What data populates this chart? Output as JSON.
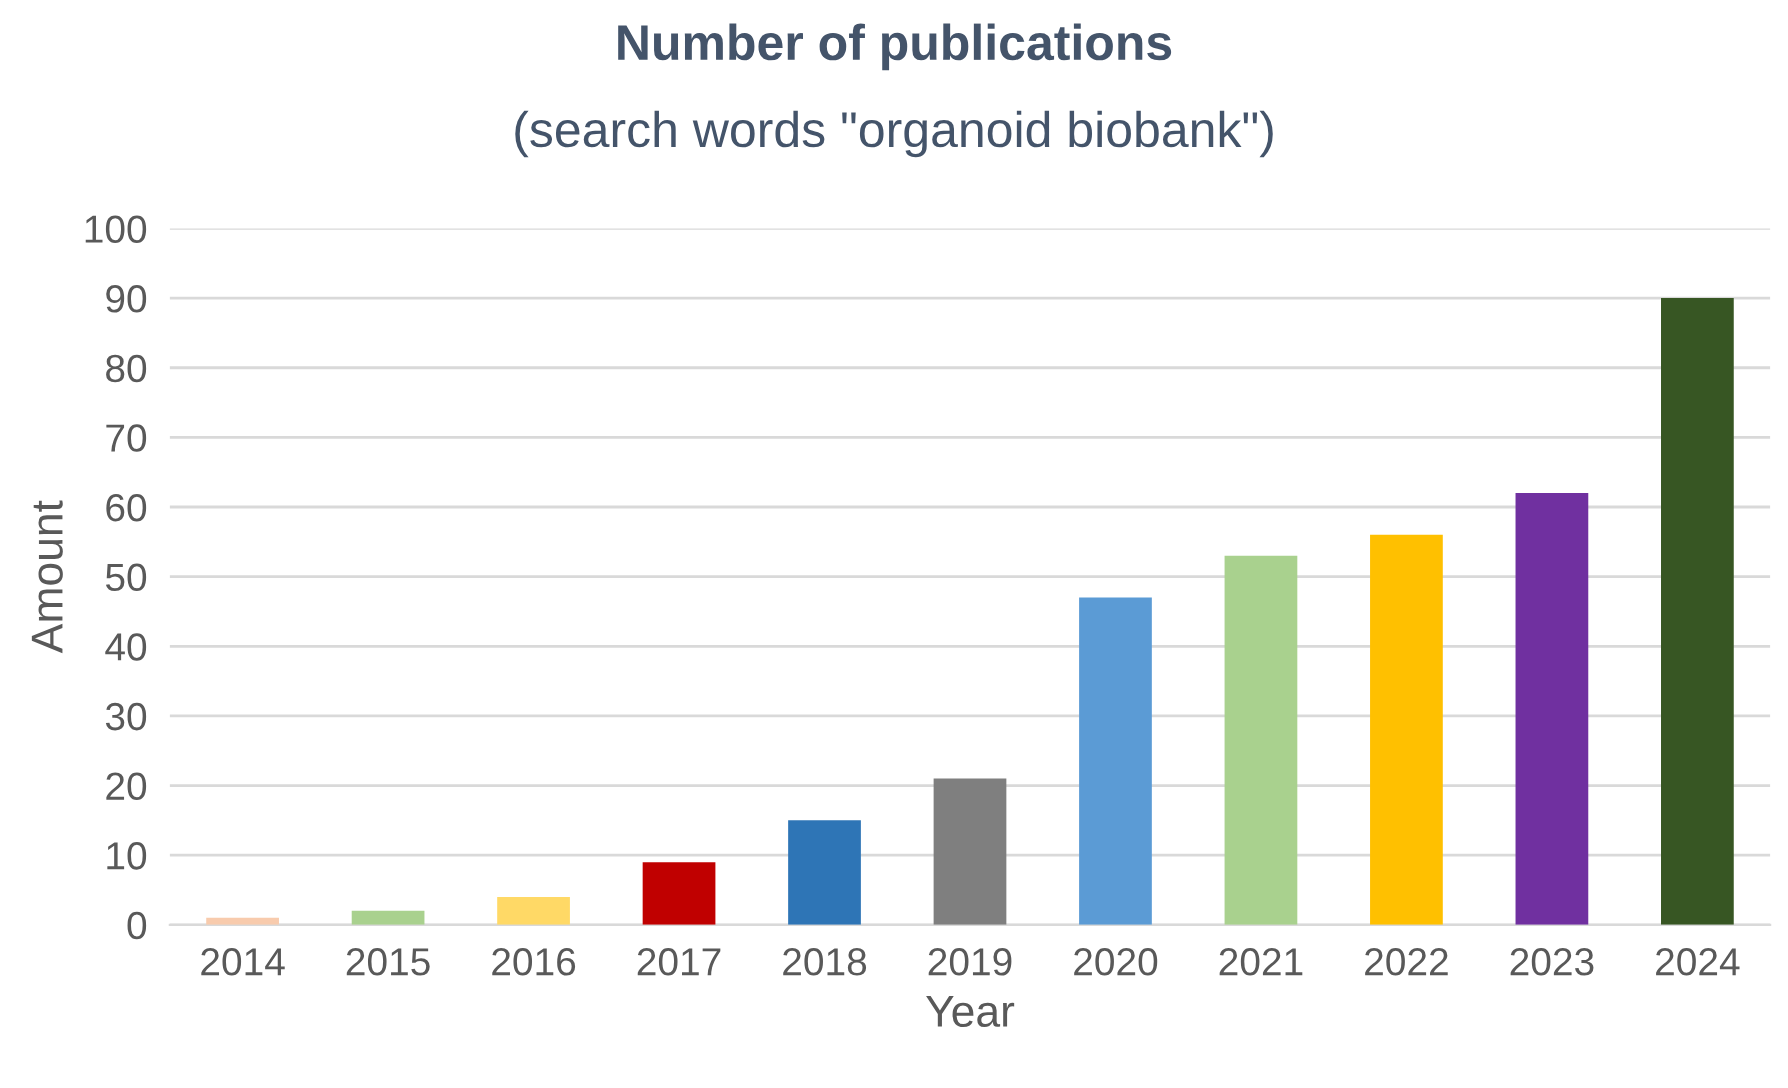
{
  "chart_data": {
    "type": "bar",
    "title": "Number of publications",
    "subtitle": "(search words \"organoid biobank\")",
    "xlabel": "Year",
    "ylabel": "Amount",
    "categories": [
      "2014",
      "2015",
      "2016",
      "2017",
      "2018",
      "2019",
      "2020",
      "2021",
      "2022",
      "2023",
      "2024"
    ],
    "values": [
      1,
      2,
      4,
      9,
      15,
      21,
      47,
      53,
      56,
      62,
      90
    ],
    "colors": [
      "#f8cbad",
      "#a9d18e",
      "#ffd966",
      "#c00000",
      "#2e75b6",
      "#7f7f7f",
      "#5b9bd5",
      "#a9d18e",
      "#ffc000",
      "#7030a0",
      "#375623"
    ],
    "ylim": [
      0,
      100
    ],
    "yticks": [
      0,
      10,
      20,
      30,
      40,
      50,
      60,
      70,
      80,
      90,
      100
    ],
    "grid": "y",
    "legend": false
  }
}
